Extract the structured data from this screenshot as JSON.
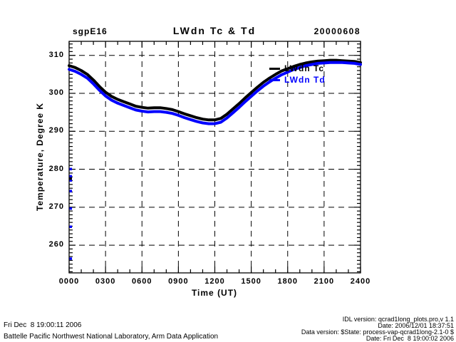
{
  "header": {
    "site": "sgpE16",
    "title": "LWdn Tc & Td",
    "date": "20000608"
  },
  "legend": [
    {
      "label": "LWdn Tc",
      "color": "#000000"
    },
    {
      "label": "LWdn Td",
      "color": "#0000ff"
    }
  ],
  "axes": {
    "x_title": "Time (UT)",
    "y_title": "Temperature, Degree K"
  },
  "footer": {
    "left_line1": "Fri Dec  8 19:00:11 2006",
    "left_line2": "Battelle Pacific Northwest National Laboratory, Arm Data Application",
    "right_lines": [
      "IDL version: qcrad1long_plots.pro,v 1.1",
      "Date: 2006/12/01 18:37:51",
      "Data version: $State: process-vap-qcrad1long-2.1-0 $",
      "Date: Fri Dec  8 19:00:02 2006"
    ]
  },
  "chart_data": {
    "type": "line",
    "title": "LWdn Tc & Td",
    "xlabel": "Time (UT)",
    "ylabel": "Temperature, Degree K",
    "xlim": [
      0,
      24
    ],
    "ylim": [
      252.7,
      313.7
    ],
    "grid": "dashed",
    "legend_position": "inside-right",
    "x_ticks": {
      "major_hours": [
        0,
        3,
        6,
        9,
        12,
        15,
        18,
        21,
        24
      ],
      "labels": [
        "0000",
        "0300",
        "0600",
        "0900",
        "1200",
        "1500",
        "1800",
        "2100",
        "2400"
      ],
      "minor_step_hours": 1
    },
    "y_ticks": {
      "major_values": [
        260,
        270,
        280,
        290,
        300,
        310
      ],
      "labels": [
        "260",
        "270",
        "280",
        "290",
        "300",
        "310"
      ],
      "minor_step": 1
    },
    "x_hours": [
      0,
      0.5,
      1,
      1.5,
      2,
      2.5,
      3,
      3.5,
      4,
      4.5,
      5,
      5.5,
      6,
      6.5,
      7,
      7.5,
      8,
      8.5,
      9,
      9.5,
      10,
      10.5,
      11,
      11.5,
      12,
      12.5,
      13,
      13.5,
      14,
      14.5,
      15,
      15.5,
      16,
      16.5,
      17,
      17.5,
      18,
      18.5,
      19,
      19.5,
      20,
      20.5,
      21,
      21.5,
      22,
      22.5,
      23,
      23.5,
      24
    ],
    "series": [
      {
        "name": "LWdn Tc",
        "color": "#000000",
        "values": [
          307.3,
          306.8,
          306.0,
          305.0,
          303.5,
          301.8,
          300.3,
          299.2,
          298.4,
          297.8,
          297.2,
          296.6,
          296.3,
          296.1,
          296.2,
          296.2,
          296.0,
          295.7,
          295.2,
          294.6,
          294.1,
          293.6,
          293.2,
          293.0,
          293.0,
          293.4,
          294.5,
          295.9,
          297.3,
          298.8,
          300.2,
          301.6,
          302.9,
          304.0,
          305.0,
          305.9,
          306.5,
          307.1,
          307.6,
          308.0,
          308.3,
          308.5,
          308.6,
          308.7,
          308.7,
          308.6,
          308.5,
          308.4,
          308.1
        ]
      },
      {
        "name": "LWdn Td",
        "color": "#0000ff",
        "values": [
          306.3,
          305.8,
          305.0,
          304.0,
          302.5,
          300.8,
          299.3,
          298.2,
          297.4,
          296.8,
          296.2,
          295.6,
          295.3,
          295.1,
          295.2,
          295.2,
          295.0,
          294.7,
          294.2,
          293.6,
          293.1,
          292.6,
          292.2,
          292.0,
          292.0,
          292.4,
          293.5,
          294.9,
          296.3,
          297.8,
          299.2,
          300.6,
          301.9,
          303.0,
          304.0,
          304.9,
          305.6,
          306.3,
          306.8,
          307.3,
          307.6,
          307.9,
          308.0,
          308.1,
          308.1,
          308.1,
          308.0,
          307.9,
          307.6
        ]
      }
    ],
    "axis_artifacts": {
      "x_hour": 0.12,
      "blue_values": [
        280.1,
        278.2,
        277.1,
        274.3,
        269.7,
        264.9,
        256.5
      ],
      "black_values": [
        277.6
      ],
      "blue_color": "#0000ff",
      "black_color": "#000000"
    }
  }
}
